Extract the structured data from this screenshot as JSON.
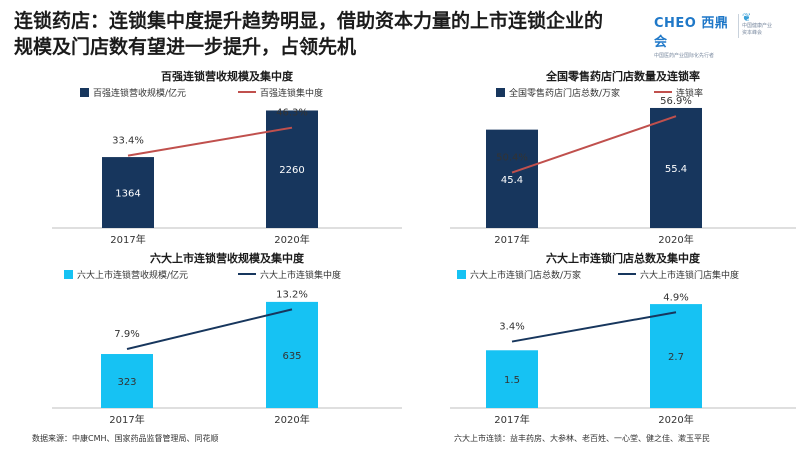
{
  "headline": "连锁药店：连锁集中度提升趋势明显，借助资本力量的上市连锁企业的规模及门店数有望进一步提升，占领先机",
  "logos": {
    "left_mark": "CHEO",
    "left_name": "西鼎会",
    "left_sub": "中国医药产业国际化先行者",
    "right_name": "中国健康产业",
    "right_sub": "资本峰会"
  },
  "colors": {
    "navy_bar": "#17365d",
    "cyan_bar": "#16c2f3",
    "red_line": "#c0504d",
    "navy_line": "#17365d"
  },
  "footnotes": {
    "source": "数据来源：中康CMH、国家药品监督管理局、同花顺",
    "six_listed": "六大上市连锁：益丰药房、大参林、老百姓、一心堂、健之佳、漱玉平民"
  },
  "chart_data": [
    {
      "type": "bar+line",
      "title": "百强连锁营收规模及集中度",
      "categories": [
        "2017年",
        "2020年"
      ],
      "bar_series": {
        "name": "百强连锁营收规模/亿元",
        "values": [
          1364,
          2260
        ],
        "labels": [
          "1364",
          "2260"
        ],
        "ylim": [
          0,
          2500
        ]
      },
      "line_series": {
        "name": "百强连锁集中度",
        "values": [
          33.4,
          46.3
        ],
        "labels": [
          "33.4%",
          "46.3%"
        ],
        "ylim": [
          0,
          60
        ]
      },
      "legend": "top",
      "grid": false,
      "bar_color": "#17365d",
      "line_color": "#c0504d",
      "bar_label_color": "#ffffff"
    },
    {
      "type": "bar+line",
      "title": "全国零售药店门店数量及连锁率",
      "categories": [
        "2017年",
        "2020年"
      ],
      "bar_series": {
        "name": "全国零售药店门店总数/万家",
        "values": [
          45.4,
          55.4
        ],
        "labels": [
          "45.4",
          "55.4"
        ],
        "ylim": [
          0,
          60
        ]
      },
      "line_series": {
        "name": "连锁率",
        "values": [
          50.4,
          56.9
        ],
        "labels": [
          "50.4%",
          "56.9%"
        ],
        "ylim": [
          44,
          59
        ]
      },
      "legend": "top",
      "grid": false,
      "bar_color": "#17365d",
      "line_color": "#c0504d",
      "bar_label_color": "#ffffff"
    },
    {
      "type": "bar+line",
      "title": "六大上市连锁营收规模及集中度",
      "categories": [
        "2017年",
        "2020年"
      ],
      "bar_series": {
        "name": "六大上市连锁营收规模/亿元",
        "values": [
          323,
          635
        ],
        "labels": [
          "323",
          "635"
        ],
        "ylim": [
          0,
          760
        ]
      },
      "line_series": {
        "name": "六大上市连锁集中度",
        "values": [
          7.9,
          13.2
        ],
        "labels": [
          "7.9%",
          "13.2%"
        ],
        "ylim": [
          0,
          17
        ]
      },
      "legend": "top",
      "grid": false,
      "bar_color": "#16c2f3",
      "line_color": "#17365d",
      "bar_label_color": "#333333"
    },
    {
      "type": "bar+line",
      "title": "六大上市连锁门店总数及集中度",
      "categories": [
        "2017年",
        "2020年"
      ],
      "bar_series": {
        "name": "六大上市连锁门店总数/万家",
        "values": [
          1.5,
          2.7
        ],
        "labels": [
          "1.5",
          "2.7"
        ],
        "ylim": [
          0,
          3.3
        ]
      },
      "line_series": {
        "name": "六大上市连锁门店集中度",
        "values": [
          3.4,
          4.9
        ],
        "labels": [
          "3.4%",
          "4.9%"
        ],
        "ylim": [
          0,
          6.5
        ]
      },
      "legend": "top",
      "grid": false,
      "bar_color": "#16c2f3",
      "line_color": "#17365d",
      "bar_label_color": "#333333"
    }
  ]
}
